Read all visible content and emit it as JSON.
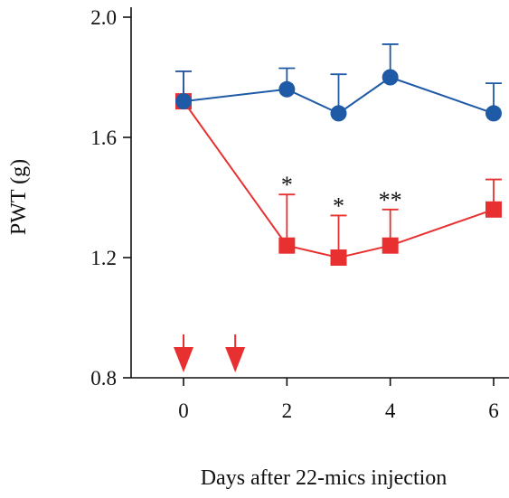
{
  "chart_data": {
    "type": "line",
    "xlabel": "Days after 22-mics injection",
    "ylabel": "PWT (g)",
    "x_ticks": [
      "0",
      "2",
      "4",
      "6"
    ],
    "y_ticks": [
      "0.8",
      "1.2",
      "1.6",
      "2.0"
    ],
    "xlim": [
      -1,
      6.3
    ],
    "ylim": [
      0.8,
      2.05
    ],
    "grid": false,
    "series": [
      {
        "color": "#1f5aa6",
        "marker": "circle",
        "x": [
          0,
          2,
          3,
          4,
          6
        ],
        "y": [
          1.72,
          1.76,
          1.68,
          1.8,
          1.68
        ],
        "error_upper": [
          0.1,
          0.07,
          0.13,
          0.11,
          0.1
        ]
      },
      {
        "color": "#e83030",
        "marker": "square",
        "x": [
          0,
          2,
          3,
          4,
          6
        ],
        "y": [
          1.72,
          1.24,
          1.2,
          1.24,
          1.36
        ],
        "error_upper": [
          0.1,
          0.17,
          0.14,
          0.12,
          0.1
        ]
      }
    ],
    "annotations": [
      {
        "x": 2,
        "text": "*"
      },
      {
        "x": 3,
        "text": "*"
      },
      {
        "x": 4,
        "text": "**"
      }
    ],
    "arrow_markers": {
      "x": [
        0,
        1
      ],
      "color": "#e83030"
    }
  }
}
